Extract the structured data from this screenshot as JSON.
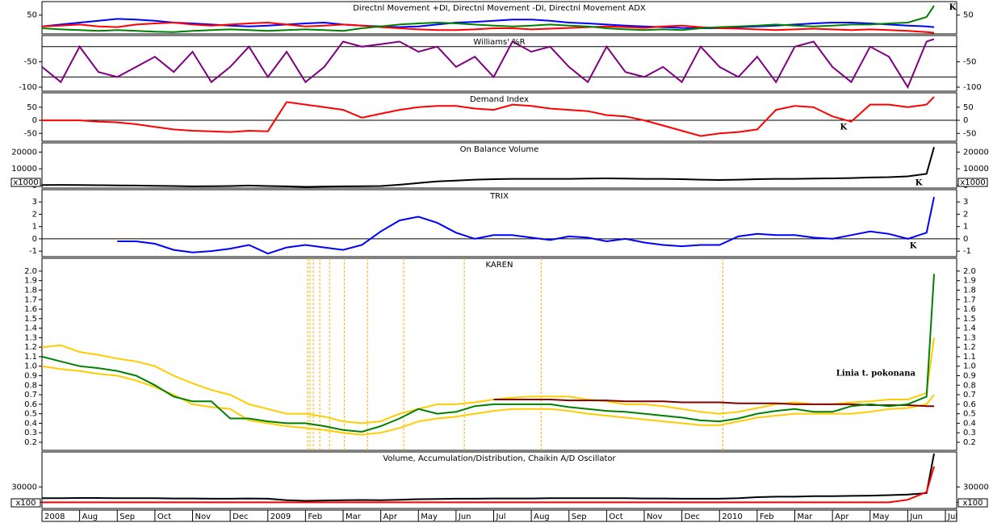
{
  "time_axis": {
    "x": [
      0,
      0.5,
      1,
      1.5,
      2,
      2.5,
      3,
      3.5,
      4,
      4.5,
      5,
      5.5,
      6,
      6.5,
      7,
      7.5,
      8,
      8.5,
      9,
      9.5,
      10,
      10.5,
      11,
      11.5,
      12,
      12.5,
      13,
      13.5,
      14,
      14.5,
      15,
      15.5,
      16,
      16.5,
      17,
      17.5,
      18,
      18.5,
      19,
      19.5,
      20,
      20.5,
      21,
      21.5,
      22,
      22.5,
      23,
      23.5,
      23.7
    ],
    "xlim": [
      0,
      24.3
    ],
    "xticks": [
      {
        "value": 0,
        "label": "2008"
      },
      {
        "value": 1,
        "label": "Aug"
      },
      {
        "value": 2,
        "label": "Sep"
      },
      {
        "value": 3,
        "label": "Oct"
      },
      {
        "value": 4,
        "label": "Nov"
      },
      {
        "value": 5,
        "label": "Dec"
      },
      {
        "value": 6,
        "label": "2009"
      },
      {
        "value": 7,
        "label": "Feb"
      },
      {
        "value": 8,
        "label": "Mar"
      },
      {
        "value": 9,
        "label": "Apr"
      },
      {
        "value": 10,
        "label": "May"
      },
      {
        "value": 11,
        "label": "Jun"
      },
      {
        "value": 12,
        "label": "Jul"
      },
      {
        "value": 13,
        "label": "Aug"
      },
      {
        "value": 14,
        "label": "Sep"
      },
      {
        "value": 15,
        "label": "Oct"
      },
      {
        "value": 16,
        "label": "Nov"
      },
      {
        "value": 17,
        "label": "Dec"
      },
      {
        "value": 18,
        "label": "2010"
      },
      {
        "value": 19,
        "label": "Feb"
      },
      {
        "value": 20,
        "label": "Mar"
      },
      {
        "value": 21,
        "label": "Apr"
      },
      {
        "value": 22,
        "label": "May"
      },
      {
        "value": 23,
        "label": "Jun"
      },
      {
        "value": 24,
        "label": "Jul"
      }
    ]
  },
  "chart_data": [
    {
      "type": "line",
      "title": "Directnl Movement +DI, Directnl Movement -DI, Directnl Movement ADX",
      "ylim": [
        0,
        86
      ],
      "yticks": [
        50
      ],
      "annotations": [
        {
          "text": "K",
          "x": 24.1,
          "y": 70
        }
      ],
      "series": [
        {
          "color": "#0000ff",
          "values": [
            20,
            25,
            30,
            35,
            40,
            38,
            35,
            30,
            28,
            25,
            22,
            20,
            22,
            25,
            28,
            30,
            25,
            22,
            20,
            18,
            20,
            25,
            30,
            32,
            35,
            38,
            38,
            35,
            30,
            28,
            25,
            22,
            20,
            18,
            16,
            15,
            15,
            18,
            20,
            22,
            25,
            28,
            30,
            30,
            28,
            25,
            22,
            20,
            18
          ]
        },
        {
          "color": "#ff0000",
          "values": [
            20,
            22,
            25,
            20,
            18,
            25,
            28,
            30,
            25,
            22,
            25,
            28,
            30,
            25,
            20,
            22,
            25,
            22,
            18,
            15,
            12,
            10,
            10,
            12,
            15,
            15,
            12,
            14,
            16,
            18,
            20,
            18,
            16,
            20,
            22,
            18,
            15,
            14,
            12,
            10,
            12,
            14,
            12,
            10,
            12,
            10,
            8,
            5,
            3
          ]
        },
        {
          "color": "#008000",
          "values": [
            15,
            12,
            10,
            8,
            10,
            8,
            6,
            5,
            8,
            10,
            12,
            10,
            8,
            10,
            12,
            10,
            8,
            15,
            20,
            25,
            28,
            30,
            28,
            25,
            22,
            20,
            22,
            25,
            22,
            20,
            15,
            12,
            10,
            12,
            10,
            15,
            18,
            20,
            22,
            25,
            22,
            20,
            22,
            25,
            25,
            28,
            30,
            45,
            75
          ]
        }
      ]
    },
    {
      "type": "line",
      "title": "Williams' %R",
      "ylim": [
        -108,
        2
      ],
      "yticks": [
        -50,
        -100
      ],
      "hlines": [
        -20,
        -80
      ],
      "series": [
        {
          "color": "#800080",
          "values": [
            -60,
            -90,
            -20,
            -70,
            -80,
            -60,
            -40,
            -70,
            -30,
            -90,
            -60,
            -20,
            -80,
            -30,
            -90,
            -60,
            -10,
            -20,
            -15,
            -10,
            -30,
            -20,
            -60,
            -40,
            -80,
            -10,
            -30,
            -20,
            -60,
            -90,
            -20,
            -70,
            -80,
            -60,
            -90,
            -20,
            -60,
            -80,
            -40,
            -90,
            -20,
            -10,
            -60,
            -90,
            -20,
            -40,
            -100,
            -10,
            -5
          ]
        }
      ]
    },
    {
      "type": "line",
      "title": "Demand Index",
      "ylim": [
        -80,
        105
      ],
      "yticks": [
        50,
        0,
        -50
      ],
      "hlines": [
        0
      ],
      "annotations": [
        {
          "text": "K",
          "x": 21.2,
          "y": -28
        }
      ],
      "series": [
        {
          "color": "#ff0000",
          "values": [
            0,
            0,
            0,
            -5,
            -8,
            -15,
            -25,
            -35,
            -40,
            -42,
            -45,
            -40,
            -42,
            70,
            60,
            50,
            40,
            10,
            25,
            40,
            50,
            55,
            55,
            45,
            40,
            60,
            55,
            45,
            40,
            35,
            20,
            15,
            0,
            -20,
            -40,
            -60,
            -50,
            -45,
            -35,
            40,
            55,
            50,
            15,
            -5,
            60,
            60,
            50,
            60,
            90
          ]
        }
      ]
    },
    {
      "type": "line",
      "title": "On Balance Volume",
      "ylim": [
        -1500,
        25500
      ],
      "yticks": [
        20000,
        10000,
        0
      ],
      "scale_note": "x1000",
      "annotations": [
        {
          "text": "K",
          "x": 23.2,
          "y": 1500
        }
      ],
      "series": [
        {
          "color": "#000000",
          "values": [
            300,
            400,
            300,
            200,
            100,
            0,
            -200,
            -300,
            -500,
            -400,
            -300,
            0,
            -300,
            -500,
            -800,
            -600,
            -500,
            -400,
            -300,
            500,
            1500,
            2500,
            3000,
            3500,
            3800,
            4000,
            4000,
            4000,
            4000,
            4200,
            4300,
            4200,
            4000,
            4000,
            3800,
            3500,
            3300,
            3500,
            3800,
            4000,
            4000,
            4200,
            4300,
            4500,
            4800,
            5000,
            5500,
            7000,
            23000
          ]
        }
      ]
    },
    {
      "type": "line",
      "title": "TRIX",
      "ylim": [
        -1.45,
        4
      ],
      "yticks": [
        3,
        2,
        1,
        0,
        -1
      ],
      "hlines": [
        0
      ],
      "annotations": [
        {
          "text": "K",
          "x": 23.05,
          "y": -0.6
        }
      ],
      "series": [
        {
          "color": "#0000ff",
          "values": [
            null,
            null,
            null,
            null,
            -0.2,
            -0.2,
            -0.4,
            -0.9,
            -1.1,
            -1.0,
            -0.8,
            -0.5,
            -1.2,
            -0.7,
            -0.5,
            -0.7,
            -0.9,
            -0.5,
            0.6,
            1.5,
            1.8,
            1.3,
            0.5,
            0.0,
            0.3,
            0.3,
            0.1,
            -0.1,
            0.2,
            0.1,
            -0.2,
            0.0,
            -0.3,
            -0.5,
            -0.6,
            -0.5,
            -0.5,
            0.2,
            0.4,
            0.3,
            0.3,
            0.1,
            0.0,
            0.3,
            0.6,
            0.4,
            0.0,
            0.5,
            3.4
          ]
        }
      ]
    },
    {
      "type": "line",
      "title": "KAREN",
      "ylim": [
        0.115,
        2.135
      ],
      "yticks": [
        {
          "value": 2,
          "label": "2.0"
        },
        1.9,
        1.8,
        1.7,
        1.6,
        1.5,
        1.4,
        1.3,
        1.2,
        1.1,
        {
          "value": 1,
          "label": "1.0"
        },
        0.9,
        0.8,
        0.7,
        0.6,
        0.5,
        0.4,
        0.3,
        0.2
      ],
      "vlines": [
        7.06,
        7.12,
        7.21,
        7.38,
        7.64,
        8.03,
        8.65,
        9.61,
        11.22,
        13.26,
        18.09
      ],
      "annotations": [
        {
          "text": "Linia t. pokonana",
          "x": 21.1,
          "y": 0.92
        }
      ],
      "series": [
        {
          "color": "#ffcc00",
          "values": [
            1.2,
            1.22,
            1.15,
            1.12,
            1.08,
            1.05,
            1.0,
            0.9,
            0.82,
            0.75,
            0.7,
            0.6,
            0.55,
            0.5,
            0.5,
            0.47,
            0.42,
            0.4,
            0.42,
            0.5,
            0.55,
            0.6,
            0.6,
            0.62,
            0.65,
            0.67,
            0.68,
            0.68,
            0.68,
            0.65,
            0.63,
            0.6,
            0.6,
            0.58,
            0.55,
            0.52,
            0.5,
            0.52,
            0.56,
            0.6,
            0.62,
            0.6,
            0.6,
            0.62,
            0.63,
            0.65,
            0.65,
            0.72,
            1.3
          ]
        },
        {
          "color": "#ffcc00",
          "values": [
            1.0,
            0.97,
            0.95,
            0.92,
            0.9,
            0.85,
            0.78,
            0.7,
            0.6,
            0.57,
            0.55,
            0.43,
            0.4,
            0.37,
            0.35,
            0.33,
            0.3,
            0.28,
            0.3,
            0.35,
            0.42,
            0.45,
            0.47,
            0.5,
            0.53,
            0.55,
            0.55,
            0.55,
            0.53,
            0.5,
            0.48,
            0.46,
            0.44,
            0.42,
            0.4,
            0.38,
            0.38,
            0.42,
            0.46,
            0.48,
            0.5,
            0.5,
            0.5,
            0.5,
            0.52,
            0.55,
            0.56,
            0.6,
            0.7
          ]
        },
        {
          "color": "#800000",
          "values": [
            null,
            null,
            null,
            null,
            null,
            null,
            null,
            null,
            null,
            null,
            null,
            null,
            null,
            null,
            null,
            null,
            null,
            null,
            null,
            null,
            null,
            null,
            null,
            null,
            0.65,
            0.65,
            0.65,
            0.65,
            0.64,
            0.64,
            0.64,
            0.63,
            0.63,
            0.63,
            0.62,
            0.62,
            0.62,
            0.61,
            0.61,
            0.61,
            0.6,
            0.6,
            0.6,
            0.6,
            0.59,
            0.59,
            0.59,
            0.58,
            0.58
          ]
        },
        {
          "color": "#008000",
          "values": [
            1.1,
            1.05,
            1.0,
            0.98,
            0.95,
            0.9,
            0.8,
            0.68,
            0.63,
            0.63,
            0.45,
            0.45,
            0.42,
            0.4,
            0.4,
            0.37,
            0.33,
            0.31,
            0.37,
            0.45,
            0.55,
            0.5,
            0.52,
            0.58,
            0.6,
            0.6,
            0.6,
            0.6,
            0.57,
            0.55,
            0.53,
            0.52,
            0.5,
            0.48,
            0.46,
            0.43,
            0.42,
            0.45,
            0.5,
            0.53,
            0.55,
            0.52,
            0.52,
            0.58,
            0.6,
            0.58,
            0.6,
            0.68,
            1.97
          ]
        }
      ]
    },
    {
      "type": "line",
      "title": "Volume, Accumulation/Distribution, Chaikin A/D Oscillator",
      "ylim": [
        -12000,
        98000
      ],
      "yticks": [
        30000,
        0
      ],
      "scale_note": "x100",
      "series": [
        {
          "color": "#000000",
          "values": [
            8000,
            8000,
            8500,
            8500,
            8000,
            8000,
            8000,
            7500,
            7500,
            7000,
            7000,
            7500,
            7000,
            4000,
            3000,
            3500,
            4000,
            4500,
            4000,
            5000,
            6000,
            6500,
            7000,
            7000,
            7500,
            7500,
            7500,
            8000,
            8000,
            8000,
            8000,
            8000,
            7500,
            7500,
            7000,
            7000,
            7000,
            8000,
            10000,
            11000,
            11000,
            12000,
            12000,
            12500,
            13000,
            14000,
            15000,
            18000,
            95000
          ]
        },
        {
          "color": "#ff0000",
          "values": [
            0,
            0,
            0,
            0,
            0,
            0,
            0,
            0,
            0,
            0,
            0,
            0,
            0,
            0,
            0,
            0,
            0,
            0,
            0,
            0,
            0,
            0,
            0,
            0,
            0,
            0,
            0,
            0,
            0,
            0,
            0,
            0,
            0,
            0,
            0,
            0,
            0,
            0,
            0,
            0,
            0,
            0,
            0,
            0,
            0,
            0,
            5000,
            20000,
            70000
          ]
        }
      ]
    }
  ]
}
